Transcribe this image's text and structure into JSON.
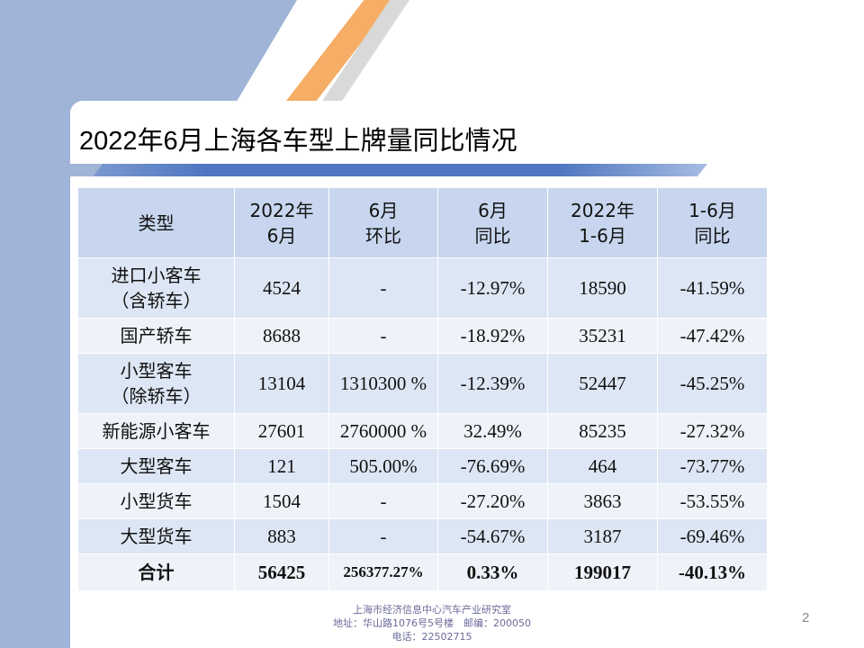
{
  "slide": {
    "title": "2022年6月上海各车型上牌量同比情况",
    "page_number": "2"
  },
  "table": {
    "headers": [
      {
        "line1": "类型",
        "line2": ""
      },
      {
        "line1": "2022年",
        "line2": "6月"
      },
      {
        "line1": "6月",
        "line2": "环比"
      },
      {
        "line1": "6月",
        "line2": "同比"
      },
      {
        "line1": "2022年",
        "line2": "1-6月"
      },
      {
        "line1": "1-6月",
        "line2": "同比"
      }
    ],
    "rows": [
      {
        "type_line1": "进口小客车",
        "type_line2": "（含轿车）",
        "jun": "4524",
        "mom": "-",
        "yoy": "-12.97%",
        "ytd": "18590",
        "ytd_yoy": "-41.59%"
      },
      {
        "type_line1": "国产轿车",
        "type_line2": "",
        "jun": "8688",
        "mom": "-",
        "yoy": "-18.92%",
        "ytd": "35231",
        "ytd_yoy": "-47.42%"
      },
      {
        "type_line1": "小型客车",
        "type_line2": "（除轿车）",
        "jun": "13104",
        "mom": "1310300 %",
        "yoy": "-12.39%",
        "ytd": "52447",
        "ytd_yoy": "-45.25%"
      },
      {
        "type_line1": "新能源小客车",
        "type_line2": "",
        "jun": "27601",
        "mom": "2760000 %",
        "yoy": "32.49%",
        "ytd": "85235",
        "ytd_yoy": "-27.32%"
      },
      {
        "type_line1": "大型客车",
        "type_line2": "",
        "jun": "121",
        "mom": "505.00%",
        "yoy": "-76.69%",
        "ytd": "464",
        "ytd_yoy": "-73.77%"
      },
      {
        "type_line1": "小型货车",
        "type_line2": "",
        "jun": "1504",
        "mom": "-",
        "yoy": "-27.20%",
        "ytd": "3863",
        "ytd_yoy": "-53.55%"
      },
      {
        "type_line1": "大型货车",
        "type_line2": "",
        "jun": "883",
        "mom": "-",
        "yoy": "-54.67%",
        "ytd": "3187",
        "ytd_yoy": "-69.46%"
      }
    ],
    "total": {
      "type": "合计",
      "jun": "56425",
      "mom": "256377.27%",
      "yoy": "0.33%",
      "ytd": "199017",
      "ytd_yoy": "-40.13%"
    }
  },
  "footer": {
    "line1": "上海市经济信息中心汽车产业研究室",
    "line2": "地址：华山路1076号5号楼　邮编：200050",
    "line3": "电话：22502715"
  },
  "colors": {
    "side_blue": "#9fb4d6",
    "accent_orange": "#f6a95d",
    "header_fill": "#c7d6ee",
    "row_fill_a": "#dde6f4",
    "row_fill_b": "#eef2f9"
  }
}
